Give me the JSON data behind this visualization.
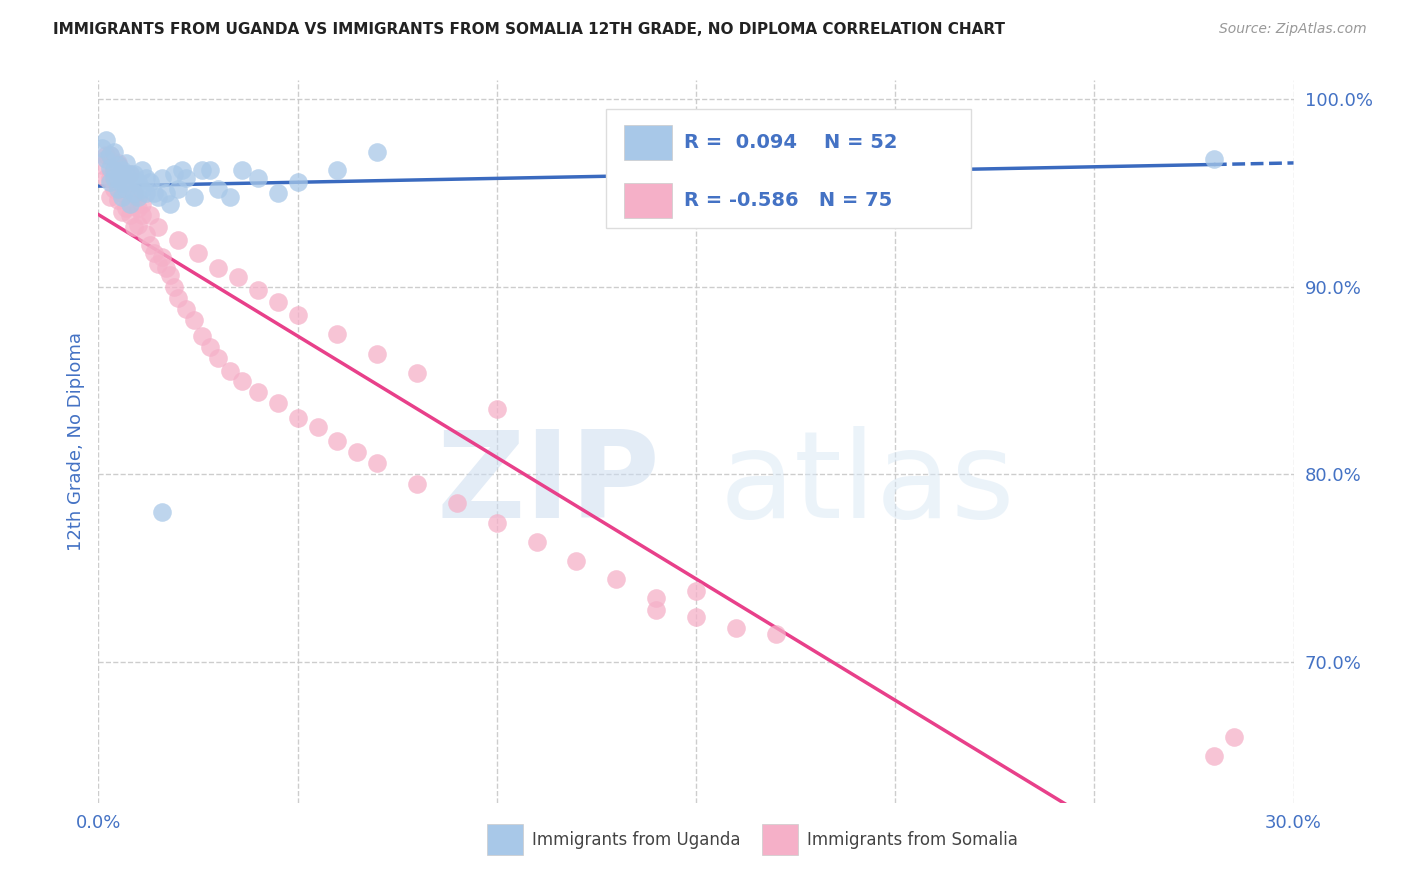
{
  "title": "IMMIGRANTS FROM UGANDA VS IMMIGRANTS FROM SOMALIA 12TH GRADE, NO DIPLOMA CORRELATION CHART",
  "source": "Source: ZipAtlas.com",
  "ylabel": "12th Grade, No Diploma",
  "xmin": 0.0,
  "xmax": 0.3,
  "ymin": 0.625,
  "ymax": 1.01,
  "x_ticks": [
    0.0,
    0.05,
    0.1,
    0.15,
    0.2,
    0.25,
    0.3
  ],
  "y_ticks_right": [
    1.0,
    0.9,
    0.8,
    0.7
  ],
  "y_tick_labels_right": [
    "100.0%",
    "90.0%",
    "80.0%",
    "70.0%"
  ],
  "uganda_color": "#a8c8e8",
  "somalia_color": "#f5b0c8",
  "uganda_line_color": "#3a6abf",
  "somalia_line_color": "#e8408a",
  "uganda_R": 0.094,
  "uganda_N": 52,
  "somalia_R": -0.586,
  "somalia_N": 75,
  "legend_label_uganda": "Immigrants from Uganda",
  "legend_label_somalia": "Immigrants from Somalia",
  "watermark_zip": "ZIP",
  "watermark_atlas": "atlas",
  "background_color": "#ffffff",
  "grid_color": "#c8c8c8",
  "title_color": "#222222",
  "axis_label_color": "#4472c4",
  "text_color": "#444444",
  "uganda_scatter_x": [
    0.001,
    0.002,
    0.002,
    0.003,
    0.003,
    0.003,
    0.004,
    0.004,
    0.004,
    0.005,
    0.005,
    0.005,
    0.006,
    0.006,
    0.006,
    0.007,
    0.007,
    0.007,
    0.008,
    0.008,
    0.008,
    0.009,
    0.009,
    0.01,
    0.01,
    0.011,
    0.011,
    0.012,
    0.012,
    0.013,
    0.014,
    0.015,
    0.016,
    0.017,
    0.018,
    0.019,
    0.02,
    0.021,
    0.022,
    0.024,
    0.026,
    0.028,
    0.03,
    0.033,
    0.036,
    0.04,
    0.045,
    0.05,
    0.06,
    0.07,
    0.28,
    0.016
  ],
  "uganda_scatter_y": [
    0.974,
    0.968,
    0.978,
    0.963,
    0.97,
    0.956,
    0.972,
    0.962,
    0.958,
    0.965,
    0.952,
    0.958,
    0.955,
    0.962,
    0.948,
    0.96,
    0.952,
    0.966,
    0.956,
    0.944,
    0.96,
    0.96,
    0.95,
    0.956,
    0.948,
    0.952,
    0.962,
    0.958,
    0.95,
    0.956,
    0.95,
    0.948,
    0.958,
    0.95,
    0.944,
    0.96,
    0.952,
    0.962,
    0.958,
    0.948,
    0.962,
    0.962,
    0.952,
    0.948,
    0.962,
    0.958,
    0.95,
    0.956,
    0.962,
    0.972,
    0.968,
    0.78
  ],
  "somalia_scatter_x": [
    0.001,
    0.002,
    0.002,
    0.003,
    0.003,
    0.004,
    0.004,
    0.005,
    0.005,
    0.006,
    0.006,
    0.007,
    0.007,
    0.008,
    0.008,
    0.009,
    0.009,
    0.01,
    0.01,
    0.011,
    0.012,
    0.013,
    0.014,
    0.015,
    0.016,
    0.017,
    0.018,
    0.019,
    0.02,
    0.022,
    0.024,
    0.026,
    0.028,
    0.03,
    0.033,
    0.036,
    0.04,
    0.045,
    0.05,
    0.055,
    0.06,
    0.065,
    0.07,
    0.08,
    0.09,
    0.1,
    0.11,
    0.12,
    0.13,
    0.14,
    0.15,
    0.003,
    0.005,
    0.007,
    0.009,
    0.011,
    0.013,
    0.015,
    0.02,
    0.025,
    0.03,
    0.035,
    0.04,
    0.045,
    0.05,
    0.06,
    0.07,
    0.08,
    0.1,
    0.14,
    0.15,
    0.16,
    0.28,
    0.285,
    0.17
  ],
  "somalia_scatter_y": [
    0.965,
    0.97,
    0.958,
    0.958,
    0.948,
    0.962,
    0.952,
    0.946,
    0.966,
    0.95,
    0.94,
    0.954,
    0.942,
    0.938,
    0.96,
    0.948,
    0.932,
    0.942,
    0.933,
    0.938,
    0.928,
    0.922,
    0.918,
    0.912,
    0.916,
    0.91,
    0.906,
    0.9,
    0.894,
    0.888,
    0.882,
    0.874,
    0.868,
    0.862,
    0.855,
    0.85,
    0.844,
    0.838,
    0.83,
    0.825,
    0.818,
    0.812,
    0.806,
    0.795,
    0.785,
    0.774,
    0.764,
    0.754,
    0.744,
    0.734,
    0.724,
    0.97,
    0.965,
    0.958,
    0.95,
    0.944,
    0.938,
    0.932,
    0.925,
    0.918,
    0.91,
    0.905,
    0.898,
    0.892,
    0.885,
    0.875,
    0.864,
    0.854,
    0.835,
    0.728,
    0.738,
    0.718,
    0.65,
    0.66,
    0.715
  ]
}
